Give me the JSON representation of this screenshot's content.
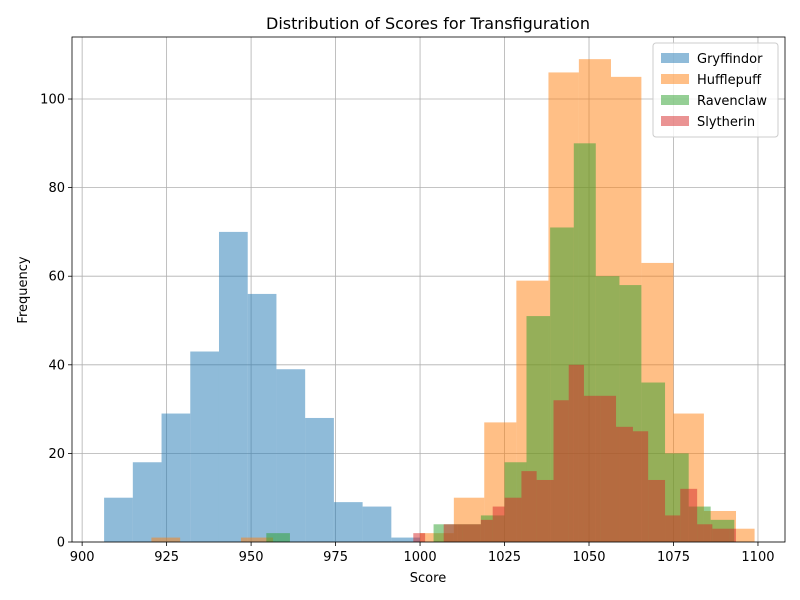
{
  "chart_data": {
    "type": "bar",
    "subtype": "overlapping-histogram",
    "title": "Distribution of Scores for Transfiguration",
    "xlabel": "Score",
    "ylabel": "Frequency",
    "xlim": [
      897,
      1108
    ],
    "ylim": [
      0,
      114
    ],
    "xticks": [
      900,
      925,
      950,
      975,
      1000,
      1025,
      1050,
      1075,
      1100
    ],
    "yticks": [
      0,
      20,
      40,
      60,
      80,
      100
    ],
    "grid": true,
    "legend_position": "top-right",
    "bar_opacity": 0.5,
    "series": [
      {
        "name": "Gryffindor",
        "color": "#1f77b4",
        "bins": [
          {
            "x0": 906.5,
            "x1": 915.0,
            "count": 10
          },
          {
            "x0": 915.0,
            "x1": 923.5,
            "count": 18
          },
          {
            "x0": 923.5,
            "x1": 932.0,
            "count": 29
          },
          {
            "x0": 932.0,
            "x1": 940.5,
            "count": 43
          },
          {
            "x0": 940.5,
            "x1": 949.0,
            "count": 70
          },
          {
            "x0": 949.0,
            "x1": 957.5,
            "count": 56
          },
          {
            "x0": 957.5,
            "x1": 966.0,
            "count": 39
          },
          {
            "x0": 966.0,
            "x1": 974.5,
            "count": 28
          },
          {
            "x0": 974.5,
            "x1": 983.0,
            "count": 9
          },
          {
            "x0": 983.0,
            "x1": 991.5,
            "count": 8
          },
          {
            "x0": 991.5,
            "x1": 1000.0,
            "count": 1
          }
        ]
      },
      {
        "name": "Hufflepuff",
        "color": "#ff7f0e",
        "bins": [
          {
            "x0": 920.5,
            "x1": 929.0,
            "count": 1
          },
          {
            "x0": 947.0,
            "x1": 956.5,
            "count": 1
          },
          {
            "x0": 1000.0,
            "x1": 1010.0,
            "count": 2
          },
          {
            "x0": 1010.0,
            "x1": 1019.0,
            "count": 10
          },
          {
            "x0": 1019.0,
            "x1": 1028.5,
            "count": 27
          },
          {
            "x0": 1028.5,
            "x1": 1038.0,
            "count": 59
          },
          {
            "x0": 1038.0,
            "x1": 1047.0,
            "count": 106
          },
          {
            "x0": 1047.0,
            "x1": 1056.5,
            "count": 109
          },
          {
            "x0": 1056.5,
            "x1": 1065.5,
            "count": 105
          },
          {
            "x0": 1065.5,
            "x1": 1075.0,
            "count": 63
          },
          {
            "x0": 1075.0,
            "x1": 1084.0,
            "count": 29
          },
          {
            "x0": 1084.0,
            "x1": 1093.5,
            "count": 7
          },
          {
            "x0": 1093.5,
            "x1": 1099.0,
            "count": 3
          }
        ]
      },
      {
        "name": "Ravenclaw",
        "color": "#2ca02c",
        "bins": [
          {
            "x0": 954.5,
            "x1": 961.5,
            "count": 2
          },
          {
            "x0": 1004.0,
            "x1": 1011.0,
            "count": 4
          },
          {
            "x0": 1011.0,
            "x1": 1018.0,
            "count": 4
          },
          {
            "x0": 1018.0,
            "x1": 1025.0,
            "count": 6
          },
          {
            "x0": 1025.0,
            "x1": 1031.5,
            "count": 18
          },
          {
            "x0": 1031.5,
            "x1": 1038.5,
            "count": 51
          },
          {
            "x0": 1038.5,
            "x1": 1045.5,
            "count": 71
          },
          {
            "x0": 1045.5,
            "x1": 1052.0,
            "count": 90
          },
          {
            "x0": 1052.0,
            "x1": 1059.0,
            "count": 60
          },
          {
            "x0": 1059.0,
            "x1": 1065.5,
            "count": 58
          },
          {
            "x0": 1065.5,
            "x1": 1072.5,
            "count": 36
          },
          {
            "x0": 1072.5,
            "x1": 1079.5,
            "count": 20
          },
          {
            "x0": 1079.5,
            "x1": 1086.0,
            "count": 8
          },
          {
            "x0": 1086.0,
            "x1": 1093.0,
            "count": 5
          }
        ]
      },
      {
        "name": "Slytherin",
        "color": "#d62728",
        "bins": [
          {
            "x0": 998.0,
            "x1": 1001.5,
            "count": 2
          },
          {
            "x0": 1007.0,
            "x1": 1012.5,
            "count": 4
          },
          {
            "x0": 1012.5,
            "x1": 1018.0,
            "count": 4
          },
          {
            "x0": 1018.0,
            "x1": 1021.5,
            "count": 5
          },
          {
            "x0": 1021.5,
            "x1": 1025.0,
            "count": 8
          },
          {
            "x0": 1025.0,
            "x1": 1030.0,
            "count": 10
          },
          {
            "x0": 1030.0,
            "x1": 1034.5,
            "count": 16
          },
          {
            "x0": 1034.5,
            "x1": 1039.5,
            "count": 14
          },
          {
            "x0": 1039.5,
            "x1": 1044.0,
            "count": 32
          },
          {
            "x0": 1044.0,
            "x1": 1048.5,
            "count": 40
          },
          {
            "x0": 1048.5,
            "x1": 1053.5,
            "count": 33
          },
          {
            "x0": 1053.5,
            "x1": 1058.0,
            "count": 33
          },
          {
            "x0": 1058.0,
            "x1": 1063.0,
            "count": 26
          },
          {
            "x0": 1063.0,
            "x1": 1067.5,
            "count": 25
          },
          {
            "x0": 1067.5,
            "x1": 1072.5,
            "count": 14
          },
          {
            "x0": 1072.5,
            "x1": 1077.0,
            "count": 6
          },
          {
            "x0": 1077.0,
            "x1": 1082.0,
            "count": 12
          },
          {
            "x0": 1082.0,
            "x1": 1086.5,
            "count": 4
          },
          {
            "x0": 1086.5,
            "x1": 1091.5,
            "count": 3
          },
          {
            "x0": 1091.5,
            "x1": 1093.5,
            "count": 3
          }
        ]
      }
    ]
  }
}
